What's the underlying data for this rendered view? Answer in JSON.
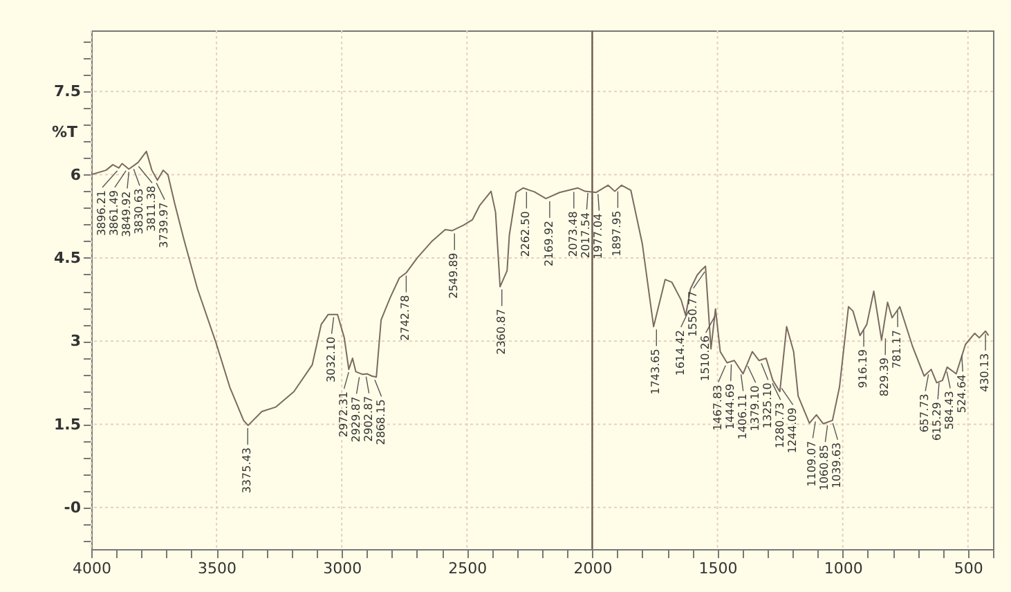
{
  "chart_data": {
    "type": "line",
    "ylabel": "%T",
    "xlim": [
      4000,
      400
    ],
    "ylim": [
      -0.75,
      8.6
    ],
    "xticks": [
      4000,
      {
        "value": 3900,
        "label": null
      },
      {
        "value": 3800,
        "label": null
      },
      {
        "value": 3700,
        "label": null
      },
      {
        "value": 3600,
        "label": null
      },
      3500,
      {
        "value": 3400,
        "label": null
      },
      {
        "value": 3300,
        "label": null
      },
      {
        "value": 3200,
        "label": null
      },
      {
        "value": 3100,
        "label": null
      },
      3000,
      {
        "value": 2900,
        "label": null
      },
      {
        "value": 2800,
        "label": null
      },
      {
        "value": 2700,
        "label": null
      },
      {
        "value": 2600,
        "label": null
      },
      2500,
      {
        "value": 2400,
        "label": null
      },
      {
        "value": 2300,
        "label": null
      },
      {
        "value": 2200,
        "label": null
      },
      {
        "value": 2100,
        "label": null
      },
      2000,
      {
        "value": 1900,
        "label": null
      },
      {
        "value": 1800,
        "label": null
      },
      {
        "value": 1700,
        "label": null
      },
      {
        "value": 1600,
        "label": null
      },
      1500,
      {
        "value": 1400,
        "label": null
      },
      {
        "value": 1300,
        "label": null
      },
      {
        "value": 1200,
        "label": null
      },
      {
        "value": 1100,
        "label": null
      },
      1000,
      {
        "value": 900,
        "label": null
      },
      {
        "value": 800,
        "label": null
      },
      {
        "value": 700,
        "label": null
      },
      {
        "value": 600,
        "label": null
      },
      500,
      {
        "value": 400,
        "label": null
      }
    ],
    "yticks": [
      {
        "value": -0.6,
        "label": null
      },
      {
        "value": -0.3,
        "label": null
      },
      {
        "value": 0,
        "label": "-0"
      },
      {
        "value": 0.3,
        "label": null
      },
      {
        "value": 0.6,
        "label": null
      },
      {
        "value": 0.9,
        "label": null
      },
      {
        "value": 1.2,
        "label": null
      },
      1.5,
      {
        "value": 1.8,
        "label": null
      },
      {
        "value": 2.1,
        "label": null
      },
      {
        "value": 2.4,
        "label": null
      },
      {
        "value": 2.7,
        "label": null
      },
      3,
      {
        "value": 3.3,
        "label": null
      },
      {
        "value": 3.6,
        "label": null
      },
      {
        "value": 3.9,
        "label": null
      },
      {
        "value": 4.2,
        "label": null
      },
      4.5,
      {
        "value": 4.8,
        "label": null
      },
      {
        "value": 5.1,
        "label": null
      },
      {
        "value": 5.4,
        "label": null
      },
      {
        "value": 5.7,
        "label": null
      },
      6,
      {
        "value": 6.3,
        "label": null
      },
      {
        "value": 6.6,
        "label": null
      },
      {
        "value": 6.9,
        "label": null
      },
      {
        "value": 7.2,
        "label": null
      },
      7.5,
      {
        "value": 7.8,
        "label": null
      },
      {
        "value": 8.1,
        "label": null
      },
      {
        "value": 8.4,
        "label": null
      }
    ],
    "grid": true,
    "marker": "none",
    "line_style": "solid",
    "ref_lines": [
      {
        "axis": "x",
        "value": 2000,
        "label": null,
        "color": "#6b5a50",
        "line_style": "solid"
      }
    ],
    "x": [
      4000,
      3941,
      3914,
      3890,
      3877,
      3850,
      3813,
      3780,
      3758,
      3736,
      3713,
      3694,
      3667,
      3630,
      3576,
      3502,
      3447,
      3392,
      3374,
      3319,
      3264,
      3191,
      3118,
      3082,
      3054,
      3017,
      2990,
      2972,
      2957,
      2944,
      2917,
      2898,
      2880,
      2862,
      2843,
      2807,
      2770,
      2743,
      2697,
      2642,
      2587,
      2560,
      2514,
      2478,
      2450,
      2404,
      2386,
      2368,
      2340,
      2331,
      2304,
      2276,
      2231,
      2185,
      2130,
      2057,
      2029,
      1984,
      1937,
      1910,
      1883,
      1846,
      1800,
      1755,
      1709,
      1682,
      1645,
      1627,
      1608,
      1581,
      1566,
      1548,
      1526,
      1508,
      1489,
      1462,
      1433,
      1398,
      1361,
      1334,
      1306,
      1279,
      1251,
      1224,
      1196,
      1178,
      1133,
      1105,
      1078,
      1041,
      1013,
      977,
      959,
      931,
      904,
      876,
      845,
      821,
      803,
      772,
      721,
      675,
      647,
      625,
      602,
      583,
      547,
      510,
      473,
      455,
      430,
      418
    ],
    "series": [
      {
        "color": "#7a6a60",
        "values": [
          6.0,
          6.08,
          6.18,
          6.12,
          6.2,
          6.1,
          6.22,
          6.42,
          6.08,
          5.9,
          6.08,
          6.0,
          5.48,
          4.83,
          3.94,
          2.97,
          2.17,
          1.57,
          1.48,
          1.73,
          1.81,
          2.09,
          2.57,
          3.3,
          3.48,
          3.48,
          3.06,
          2.49,
          2.69,
          2.45,
          2.4,
          2.41,
          2.37,
          2.35,
          3.38,
          3.78,
          4.14,
          4.23,
          4.51,
          4.79,
          5.01,
          4.99,
          5.09,
          5.19,
          5.44,
          5.7,
          5.32,
          3.98,
          4.27,
          4.91,
          5.68,
          5.76,
          5.69,
          5.57,
          5.68,
          5.76,
          5.7,
          5.68,
          5.81,
          5.7,
          5.81,
          5.72,
          4.75,
          3.26,
          4.11,
          4.06,
          3.74,
          3.46,
          3.94,
          4.19,
          4.27,
          4.35,
          2.86,
          3.58,
          2.81,
          2.61,
          2.65,
          2.41,
          2.81,
          2.65,
          2.69,
          2.29,
          2.09,
          3.26,
          2.81,
          2.01,
          1.52,
          1.67,
          1.51,
          1.57,
          2.17,
          3.62,
          3.54,
          3.1,
          3.3,
          3.9,
          3.02,
          3.7,
          3.42,
          3.62,
          2.9,
          2.37,
          2.49,
          2.25,
          2.29,
          2.53,
          2.41,
          2.94,
          3.14,
          3.06,
          3.18,
          3.1
        ]
      }
    ],
    "annotations": [
      {
        "text": "3896.21",
        "x": 3896.21,
        "y": 6.12
      },
      {
        "text": "3861.49",
        "x": 3861.49,
        "y": 6.12
      },
      {
        "text": "3849.92",
        "x": 3849.92,
        "y": 6.1
      },
      {
        "text": "3830.63",
        "x": 3830.63,
        "y": 6.15
      },
      {
        "text": "3811.38",
        "x": 3811.38,
        "y": 6.2
      },
      {
        "text": "3739.97",
        "x": 3739.97,
        "y": 5.9
      },
      {
        "text": "3375.43",
        "x": 3375.43,
        "y": 1.48
      },
      {
        "text": "3032.10",
        "x": 3032.1,
        "y": 3.48
      },
      {
        "text": "2972.31",
        "x": 2972.31,
        "y": 2.49
      },
      {
        "text": "2929.87",
        "x": 2929.87,
        "y": 2.4
      },
      {
        "text": "2902.87",
        "x": 2902.87,
        "y": 2.41
      },
      {
        "text": "2868.15",
        "x": 2868.15,
        "y": 2.35
      },
      {
        "text": "2742.78",
        "x": 2742.78,
        "y": 4.23
      },
      {
        "text": "2549.89",
        "x": 2549.89,
        "y": 4.99
      },
      {
        "text": "2360.87",
        "x": 2360.87,
        "y": 3.98
      },
      {
        "text": "2262.50",
        "x": 2262.5,
        "y": 5.74
      },
      {
        "text": "2169.92",
        "x": 2169.92,
        "y": 5.57
      },
      {
        "text": "2073.48",
        "x": 2073.48,
        "y": 5.74
      },
      {
        "text": "2017.54",
        "x": 2017.54,
        "y": 5.72
      },
      {
        "text": "1977.04",
        "x": 1977.04,
        "y": 5.7
      },
      {
        "text": "1897.95",
        "x": 1897.95,
        "y": 5.75
      },
      {
        "text": "1743.65",
        "x": 1743.65,
        "y": 3.26
      },
      {
        "text": "1614.42",
        "x": 1614.42,
        "y": 3.6
      },
      {
        "text": "1550.77",
        "x": 1550.77,
        "y": 4.3
      },
      {
        "text": "1510.26",
        "x": 1510.26,
        "y": 3.5
      },
      {
        "text": "1467.83",
        "x": 1467.83,
        "y": 2.61
      },
      {
        "text": "1444.69",
        "x": 1444.69,
        "y": 2.63
      },
      {
        "text": "1406.11",
        "x": 1406.11,
        "y": 2.45
      },
      {
        "text": "1379.10",
        "x": 1379.1,
        "y": 2.6
      },
      {
        "text": "1325.10",
        "x": 1325.1,
        "y": 2.65
      },
      {
        "text": "1280.73",
        "x": 1280.73,
        "y": 2.29
      },
      {
        "text": "1244.09",
        "x": 1244.09,
        "y": 2.2
      },
      {
        "text": "1109.07",
        "x": 1109.07,
        "y": 1.6
      },
      {
        "text": "1060.85",
        "x": 1060.85,
        "y": 1.53
      },
      {
        "text": "1039.63",
        "x": 1039.63,
        "y": 1.57
      },
      {
        "text": "916.19",
        "x": 916.19,
        "y": 3.25
      },
      {
        "text": "829.39",
        "x": 829.39,
        "y": 3.1
      },
      {
        "text": "781.17",
        "x": 781.17,
        "y": 3.6
      },
      {
        "text": "657.73",
        "x": 657.73,
        "y": 2.45
      },
      {
        "text": "615.29",
        "x": 615.29,
        "y": 2.3
      },
      {
        "text": "584.43",
        "x": 584.43,
        "y": 2.5
      },
      {
        "text": "524.64",
        "x": 524.64,
        "y": 2.8
      },
      {
        "text": "430.13",
        "x": 430.13,
        "y": 3.18
      }
    ]
  }
}
